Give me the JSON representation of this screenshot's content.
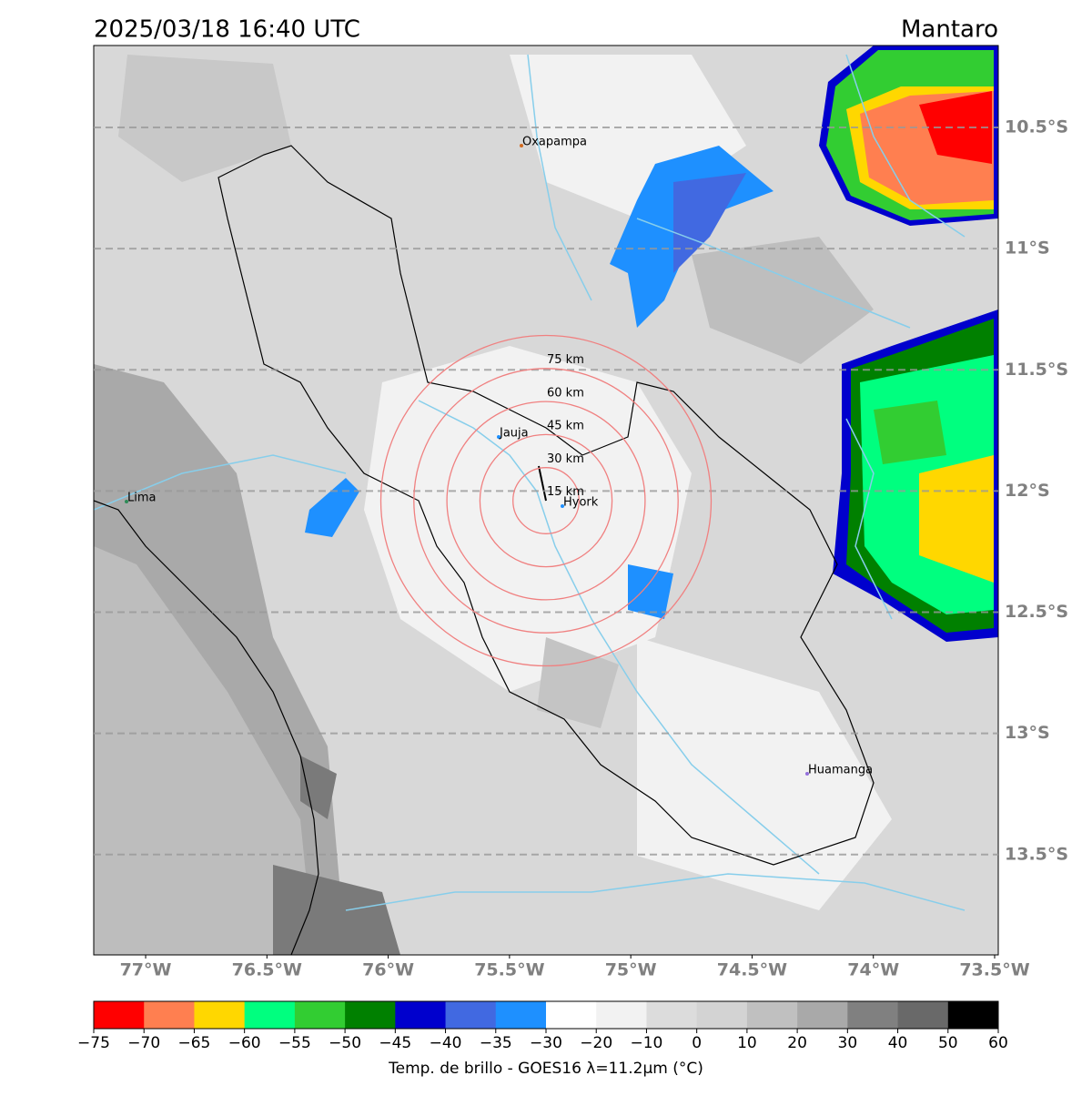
{
  "header": {
    "title": "2025/03/18 16:40 UTC",
    "region": "Mantaro"
  },
  "map": {
    "lon_range": [
      -77.214,
      -73.485
    ],
    "lat_range": [
      -10.162,
      -13.914
    ],
    "lon_ticks": [
      {
        "value": -77,
        "label": "77°W"
      },
      {
        "value": -76.5,
        "label": "76.5°W"
      },
      {
        "value": -76,
        "label": "76°W"
      },
      {
        "value": -75.5,
        "label": "75.5°W"
      },
      {
        "value": -75,
        "label": "75°W"
      },
      {
        "value": -74.5,
        "label": "74.5°W"
      },
      {
        "value": -74,
        "label": "74°W"
      },
      {
        "value": -73.5,
        "label": "73.5°W"
      }
    ],
    "lat_ticks": [
      {
        "value": -10.5,
        "label": "10.5°S"
      },
      {
        "value": -11,
        "label": "11°S"
      },
      {
        "value": -11.5,
        "label": "11.5°S"
      },
      {
        "value": -12,
        "label": "12°S"
      },
      {
        "value": -12.5,
        "label": "12.5°S"
      },
      {
        "value": -13,
        "label": "13°S"
      },
      {
        "value": -13.5,
        "label": "13.5°S"
      }
    ],
    "places": [
      "Oxapampa",
      "Jauja",
      "Lima",
      "Hyork",
      "Huamanga"
    ],
    "range_rings": {
      "values": [
        15,
        30,
        45,
        60,
        75
      ],
      "value_labels": [
        "15 km",
        "30 km",
        "45 km",
        "60 km",
        "75 km"
      ]
    }
  },
  "colorbar": {
    "bounds": [
      {
        "value": -75,
        "label": "−75"
      },
      {
        "value": -70,
        "label": "−70"
      },
      {
        "value": -65,
        "label": "−65"
      },
      {
        "value": -60,
        "label": "−60"
      },
      {
        "value": -55,
        "label": "−55"
      },
      {
        "value": -50,
        "label": "−50"
      },
      {
        "value": -45,
        "label": "−45"
      },
      {
        "value": -40,
        "label": "−40"
      },
      {
        "value": -35,
        "label": "−35"
      },
      {
        "value": -30,
        "label": "−30"
      },
      {
        "value": -20,
        "label": "−20"
      },
      {
        "value": -10,
        "label": "−10"
      },
      0,
      10,
      20,
      30,
      40,
      50,
      60
    ],
    "colors": [
      "#ff0000",
      "#ff7f50",
      "#ffd700",
      "#00ff7f",
      "#32cd32",
      "#008000",
      "#0000cd",
      "#4169e1",
      "#1e90ff",
      "#ffffff",
      "#f2f2f2",
      "#dcdcdc",
      "#d3d3d3",
      "#c0c0c0",
      "#a9a9a9",
      "#808080",
      "#696969",
      "#000000"
    ],
    "label": "Temp. de brillo - GOES16 λ=11.2μm (°C)"
  }
}
